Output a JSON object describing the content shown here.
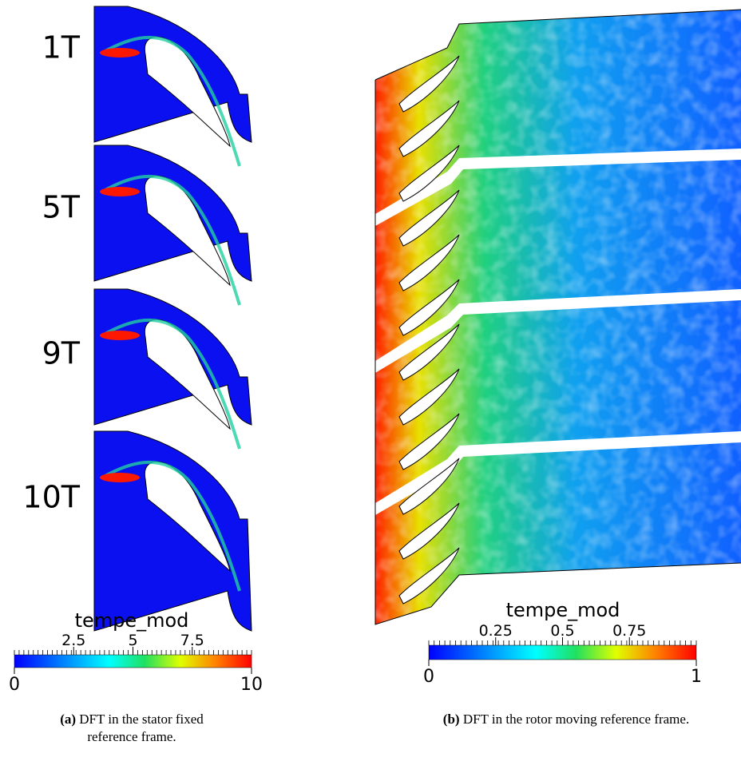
{
  "panel_a": {
    "row_labels": [
      "1T",
      "5T",
      "9T",
      "10T"
    ],
    "colorbar": {
      "title": "tempe_mod",
      "range": [
        0,
        10
      ],
      "ticks": [
        2.5,
        5,
        7.5
      ]
    },
    "caption": {
      "tag": "(a)",
      "text": "DFT in the stator fixed reference frame."
    }
  },
  "panel_b": {
    "colorbar": {
      "title": "tempe_mod",
      "range": [
        0,
        1
      ],
      "ticks": [
        0.25,
        0.5,
        0.75
      ]
    },
    "caption": {
      "tag": "(b)",
      "text": "DFT in the rotor moving reference frame."
    }
  }
}
